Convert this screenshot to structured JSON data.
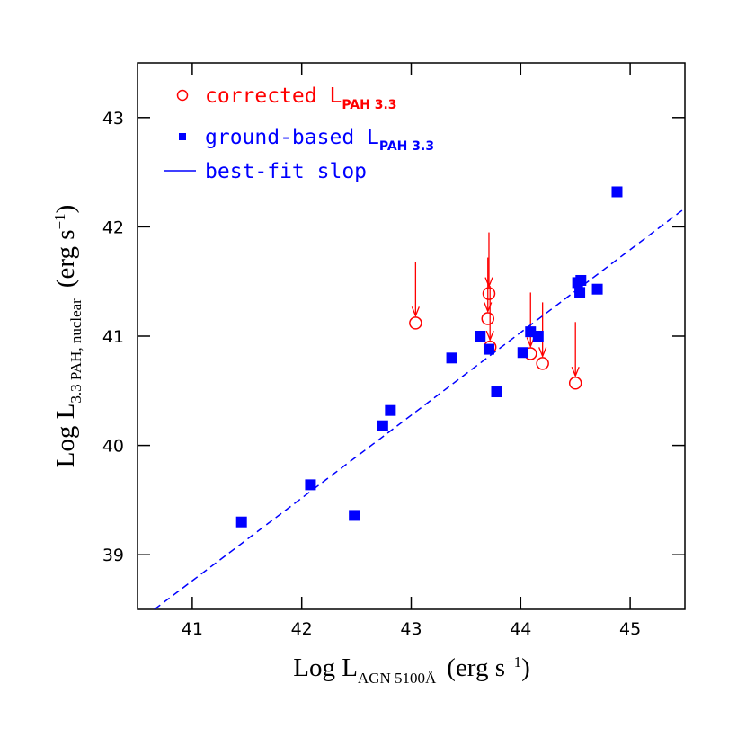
{
  "chart_data": {
    "type": "scatter",
    "xlabel": {
      "text": "Log L",
      "sub": "AGN 5100Å",
      "after": "(erg s",
      "sup": "−1",
      "end": ")"
    },
    "ylabel": {
      "text": "Log L",
      "sub": "3.3 PAH, nuclear",
      "after": "(erg s",
      "sup": "−1",
      "end": ")"
    },
    "xlim": [
      40.5,
      45.5
    ],
    "ylim": [
      38.5,
      43.5
    ],
    "xticks": [
      41,
      42,
      43,
      44,
      45
    ],
    "yticks": [
      39,
      40,
      41,
      42,
      43
    ],
    "series": [
      {
        "name": "corrected L",
        "name_sub": "PAH 3.3",
        "color": "#ff0000",
        "marker": "circle",
        "upper_limit": true,
        "x": [
          43.04,
          43.71,
          43.7,
          43.72,
          44.09,
          44.2,
          44.5
        ],
        "values": [
          41.12,
          41.39,
          41.16,
          40.9,
          40.84,
          40.75,
          40.57
        ]
      },
      {
        "name": "ground-based L",
        "name_sub": "PAH 3.3",
        "color": "#0000ff",
        "marker": "square",
        "x": [
          41.45,
          42.08,
          42.48,
          42.74,
          42.81,
          43.37,
          43.63,
          43.71,
          43.78,
          44.02,
          44.09,
          44.16,
          44.52,
          44.55,
          44.54,
          44.7,
          44.88
        ],
        "values": [
          39.3,
          39.64,
          39.36,
          40.18,
          40.32,
          40.8,
          41.0,
          40.88,
          40.49,
          40.85,
          41.04,
          41.0,
          41.49,
          41.51,
          41.4,
          41.43,
          42.32
        ]
      },
      {
        "name": "best-fit slop",
        "color": "#0000ff",
        "marker": "line",
        "dashed": true,
        "x": [
          40.655,
          45.5
        ],
        "values": [
          38.5,
          42.17
        ]
      }
    ]
  }
}
